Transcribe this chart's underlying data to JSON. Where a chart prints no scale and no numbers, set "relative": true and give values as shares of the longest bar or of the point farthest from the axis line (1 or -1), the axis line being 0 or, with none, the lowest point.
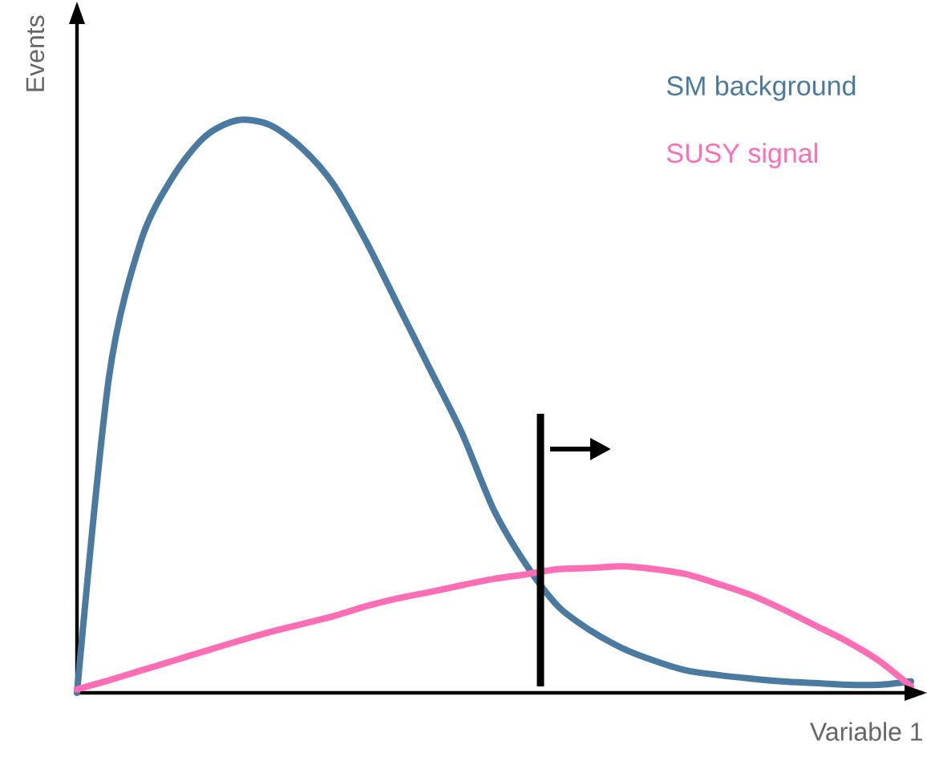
{
  "chart_data": {
    "type": "line",
    "relative": true,
    "xlabel": "Variable 1",
    "ylabel": "Events",
    "legend": "top right",
    "line_style": "solid",
    "marker": "none",
    "categories": [
      null,
      null,
      null,
      null,
      null,
      null,
      null,
      null,
      null,
      null,
      null,
      null,
      null,
      null,
      null,
      null,
      null,
      null,
      null,
      null,
      null,
      null,
      null,
      null,
      null,
      null,
      null
    ],
    "series": [
      {
        "name": "SM background",
        "color": "#4a7aa0",
        "values": [
          0,
          0.552,
          0.79,
          0.902,
          0.972,
          1,
          0.992,
          0.952,
          0.888,
          0.79,
          0.678,
          0.566,
          0.454,
          0.319,
          0.224,
          0.151,
          0.109,
          0.078,
          0.056,
          0.039,
          0.031,
          0.025,
          0.02,
          0.017,
          0.014,
          0.014,
          0.02
        ]
      },
      {
        "name": "SUSY signal",
        "color": "#ff6eb4",
        "values": [
          0.006,
          0.022,
          0.039,
          0.056,
          0.073,
          0.09,
          0.106,
          0.12,
          0.134,
          0.151,
          0.165,
          0.176,
          0.188,
          0.199,
          0.207,
          0.216,
          0.218,
          0.221,
          0.216,
          0.207,
          0.19,
          0.171,
          0.146,
          0.118,
          0.09,
          0.056,
          0.011
        ]
      }
    ]
  }
}
